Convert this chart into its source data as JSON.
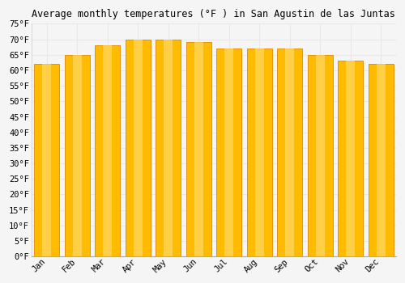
{
  "title": "Average monthly temperatures (°F ) in San Agustin de las Juntas",
  "months": [
    "Jan",
    "Feb",
    "Mar",
    "Apr",
    "May",
    "Jun",
    "Jul",
    "Aug",
    "Sep",
    "Oct",
    "Nov",
    "Dec"
  ],
  "values": [
    62,
    65,
    68,
    70,
    70,
    69,
    67,
    67,
    67,
    65,
    63,
    62
  ],
  "bar_color_main": "#FFBB00",
  "bar_color_light": "#FFD966",
  "bar_color_edge": "#E08800",
  "ylim": [
    0,
    75
  ],
  "yticks": [
    0,
    5,
    10,
    15,
    20,
    25,
    30,
    35,
    40,
    45,
    50,
    55,
    60,
    65,
    70,
    75
  ],
  "ytick_labels": [
    "0°F",
    "5°F",
    "10°F",
    "15°F",
    "20°F",
    "25°F",
    "30°F",
    "35°F",
    "40°F",
    "45°F",
    "50°F",
    "55°F",
    "60°F",
    "65°F",
    "70°F",
    "75°F"
  ],
  "background_color": "#f5f5f5",
  "grid_color": "#e8e8e8",
  "title_fontsize": 8.5,
  "tick_fontsize": 7.5,
  "font_family": "monospace"
}
